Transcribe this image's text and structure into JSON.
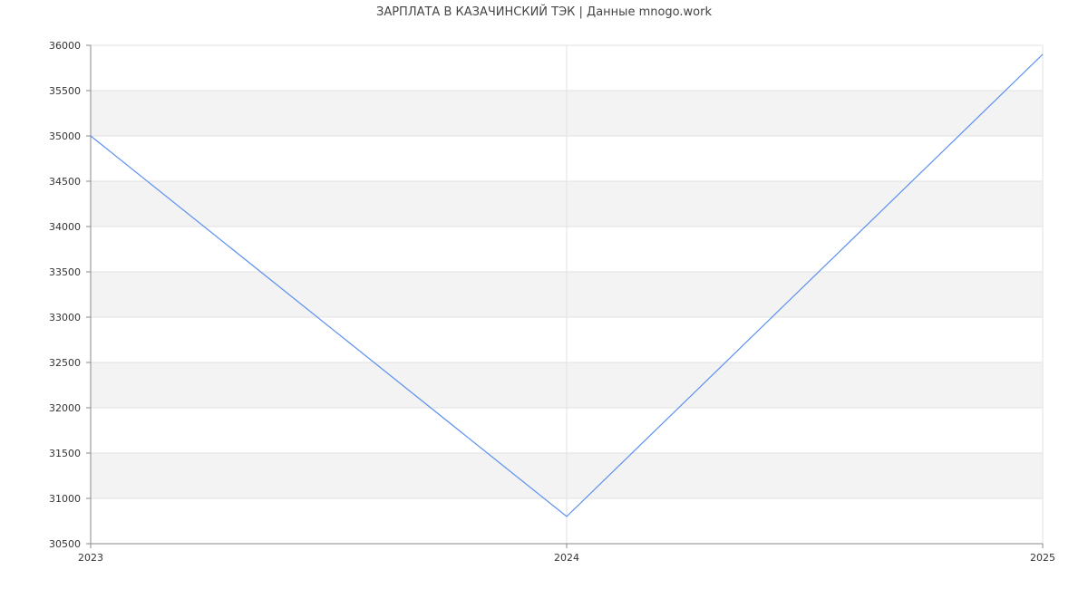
{
  "chart_data": {
    "type": "line",
    "title": "ЗАРПЛАТА В КАЗАЧИНСКИЙ ТЭК | Данные mnogo.work",
    "xlabel": "",
    "ylabel": "",
    "x": [
      "2023",
      "2024",
      "2025"
    ],
    "series": [
      {
        "values": [
          35000,
          30800,
          35900
        ],
        "color": "#5b8fef"
      }
    ],
    "ylim": [
      30500,
      36000
    ],
    "yticks": [
      30500,
      31000,
      31500,
      32000,
      32500,
      33000,
      33500,
      34000,
      34500,
      35000,
      35500,
      36000
    ],
    "grid": true,
    "band_color": "#f3f3f3",
    "grid_color": "#e2e2e2"
  }
}
